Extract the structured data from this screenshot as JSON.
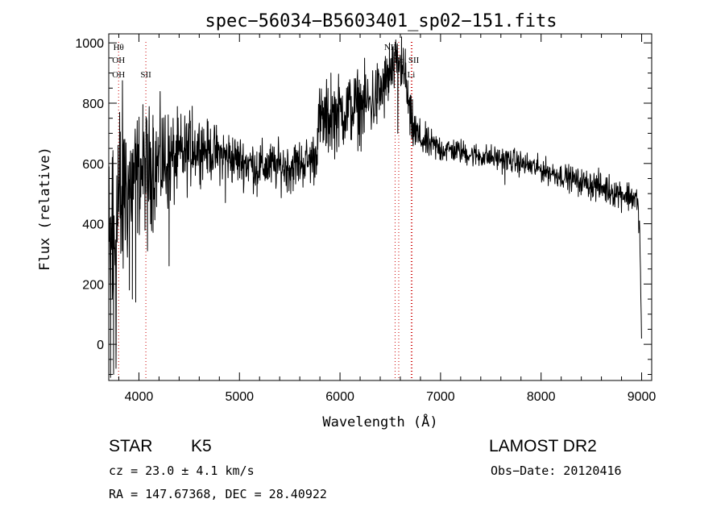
{
  "chart_data": {
    "type": "line",
    "title": "spec−56034−B5603401_sp02−151.fits",
    "xlabel": "Wavelength (Å)",
    "ylabel": "Flux (relative)",
    "xlim": [
      3700,
      9100
    ],
    "ylim": [
      -120,
      1030
    ],
    "x_ticks": [
      4000,
      5000,
      6000,
      7000,
      8000,
      9000
    ],
    "x_tick_labels": [
      "4000",
      "5000",
      "6000",
      "7000",
      "8000",
      "9000"
    ],
    "x_minor_step": 200,
    "y_ticks": [
      0,
      200,
      400,
      600,
      800,
      1000
    ],
    "y_tick_labels": [
      "0",
      "200",
      "400",
      "600",
      "800",
      "1000"
    ],
    "y_minor_step": 50,
    "grid": false,
    "line_color": "#000000",
    "marker_color": "#cc0000",
    "spectrum_anchors": {
      "x": [
        3700,
        3730,
        3760,
        3800,
        3850,
        3900,
        3950,
        4000,
        4050,
        4100,
        4150,
        4200,
        4250,
        4300,
        4350,
        4400,
        4450,
        4500,
        4550,
        4600,
        4650,
        4700,
        4800,
        4900,
        5000,
        5100,
        5200,
        5300,
        5400,
        5500,
        5600,
        5700,
        5760,
        5780,
        5800,
        5900,
        6000,
        6100,
        6200,
        6300,
        6400,
        6450,
        6500,
        6550,
        6570,
        6600,
        6650,
        6700,
        6750,
        6800,
        6900,
        7000,
        7100,
        7200,
        7300,
        7400,
        7500,
        7600,
        7700,
        7800,
        7900,
        8000,
        8100,
        8200,
        8300,
        8400,
        8500,
        8600,
        8700,
        8800,
        8900,
        8950,
        8980,
        9000
      ],
      "y": [
        200,
        300,
        380,
        430,
        500,
        530,
        550,
        570,
        580,
        590,
        590,
        600,
        600,
        610,
        610,
        620,
        630,
        640,
        650,
        655,
        650,
        640,
        630,
        620,
        610,
        600,
        590,
        590,
        590,
        590,
        600,
        610,
        625,
        730,
        735,
        750,
        770,
        780,
        790,
        800,
        830,
        860,
        890,
        920,
        940,
        920,
        880,
        740,
        700,
        680,
        660,
        650,
        645,
        640,
        630,
        625,
        620,
        615,
        610,
        600,
        590,
        580,
        570,
        560,
        550,
        540,
        530,
        520,
        510,
        500,
        490,
        480,
        400,
        0
      ],
      "scatter": [
        220,
        240,
        200,
        220,
        160,
        120,
        110,
        100,
        100,
        95,
        95,
        90,
        85,
        80,
        75,
        70,
        65,
        60,
        55,
        50,
        45,
        45,
        45,
        45,
        40,
        40,
        40,
        40,
        40,
        40,
        40,
        40,
        45,
        55,
        60,
        60,
        60,
        60,
        60,
        60,
        60,
        55,
        45,
        40,
        40,
        40,
        40,
        40,
        40,
        30,
        25,
        25,
        20,
        20,
        20,
        20,
        20,
        20,
        20,
        20,
        20,
        20,
        20,
        20,
        20,
        20,
        25,
        25,
        25,
        25,
        25,
        25,
        20,
        0
      ]
    },
    "spikes": [
      {
        "x": 3718,
        "y": -110
      },
      {
        "x": 3735,
        "y": 620
      },
      {
        "x": 3748,
        "y": -100
      },
      {
        "x": 3772,
        "y": -80
      },
      {
        "x": 3792,
        "y": 660
      },
      {
        "x": 3860,
        "y": 680
      },
      {
        "x": 3905,
        "y": 180
      },
      {
        "x": 3935,
        "y": 150
      },
      {
        "x": 3968,
        "y": 140
      },
      {
        "x": 4040,
        "y": 700
      },
      {
        "x": 4085,
        "y": 310
      },
      {
        "x": 4140,
        "y": 760
      },
      {
        "x": 4230,
        "y": 750
      },
      {
        "x": 4262,
        "y": 760
      },
      {
        "x": 4300,
        "y": 260
      },
      {
        "x": 4530,
        "y": 790
      },
      {
        "x": 4630,
        "y": 720
      },
      {
        "x": 4860,
        "y": 470
      },
      {
        "x": 5175,
        "y": 490
      },
      {
        "x": 5510,
        "y": 500
      },
      {
        "x": 5775,
        "y": 600
      },
      {
        "x": 5910,
        "y": 900
      },
      {
        "x": 6405,
        "y": 890
      },
      {
        "x": 6492,
        "y": 1000
      },
      {
        "x": 6520,
        "y": 985
      },
      {
        "x": 6555,
        "y": 1010
      },
      {
        "x": 6575,
        "y": 700
      },
      {
        "x": 6612,
        "y": 1020
      },
      {
        "x": 6650,
        "y": 980
      },
      {
        "x": 7640,
        "y": 530
      },
      {
        "x": 8370,
        "y": 490
      }
    ],
    "line_markers": [
      {
        "x": 3798,
        "labels": [
          "Hθ",
          "OH",
          "OH"
        ]
      },
      {
        "x": 4069,
        "labels": [
          "SII"
        ]
      },
      {
        "x": 6548,
        "labels": [
          "NII"
        ]
      },
      {
        "x": 6584,
        "labels": [
          "Hα"
        ]
      },
      {
        "x": 6717,
        "labels": [
          "SII"
        ]
      },
      {
        "x": 6708,
        "labels": [
          "Li"
        ]
      }
    ],
    "annotations": {
      "object_class": "STAR",
      "subclass": "K5",
      "survey": "LAMOST DR2",
      "redshift": "cz = 23.0 ± 4.1 km/s",
      "obs_date": "Obs−Date: 20120416",
      "coords": "RA = 147.67368, DEC =  28.40922"
    }
  }
}
